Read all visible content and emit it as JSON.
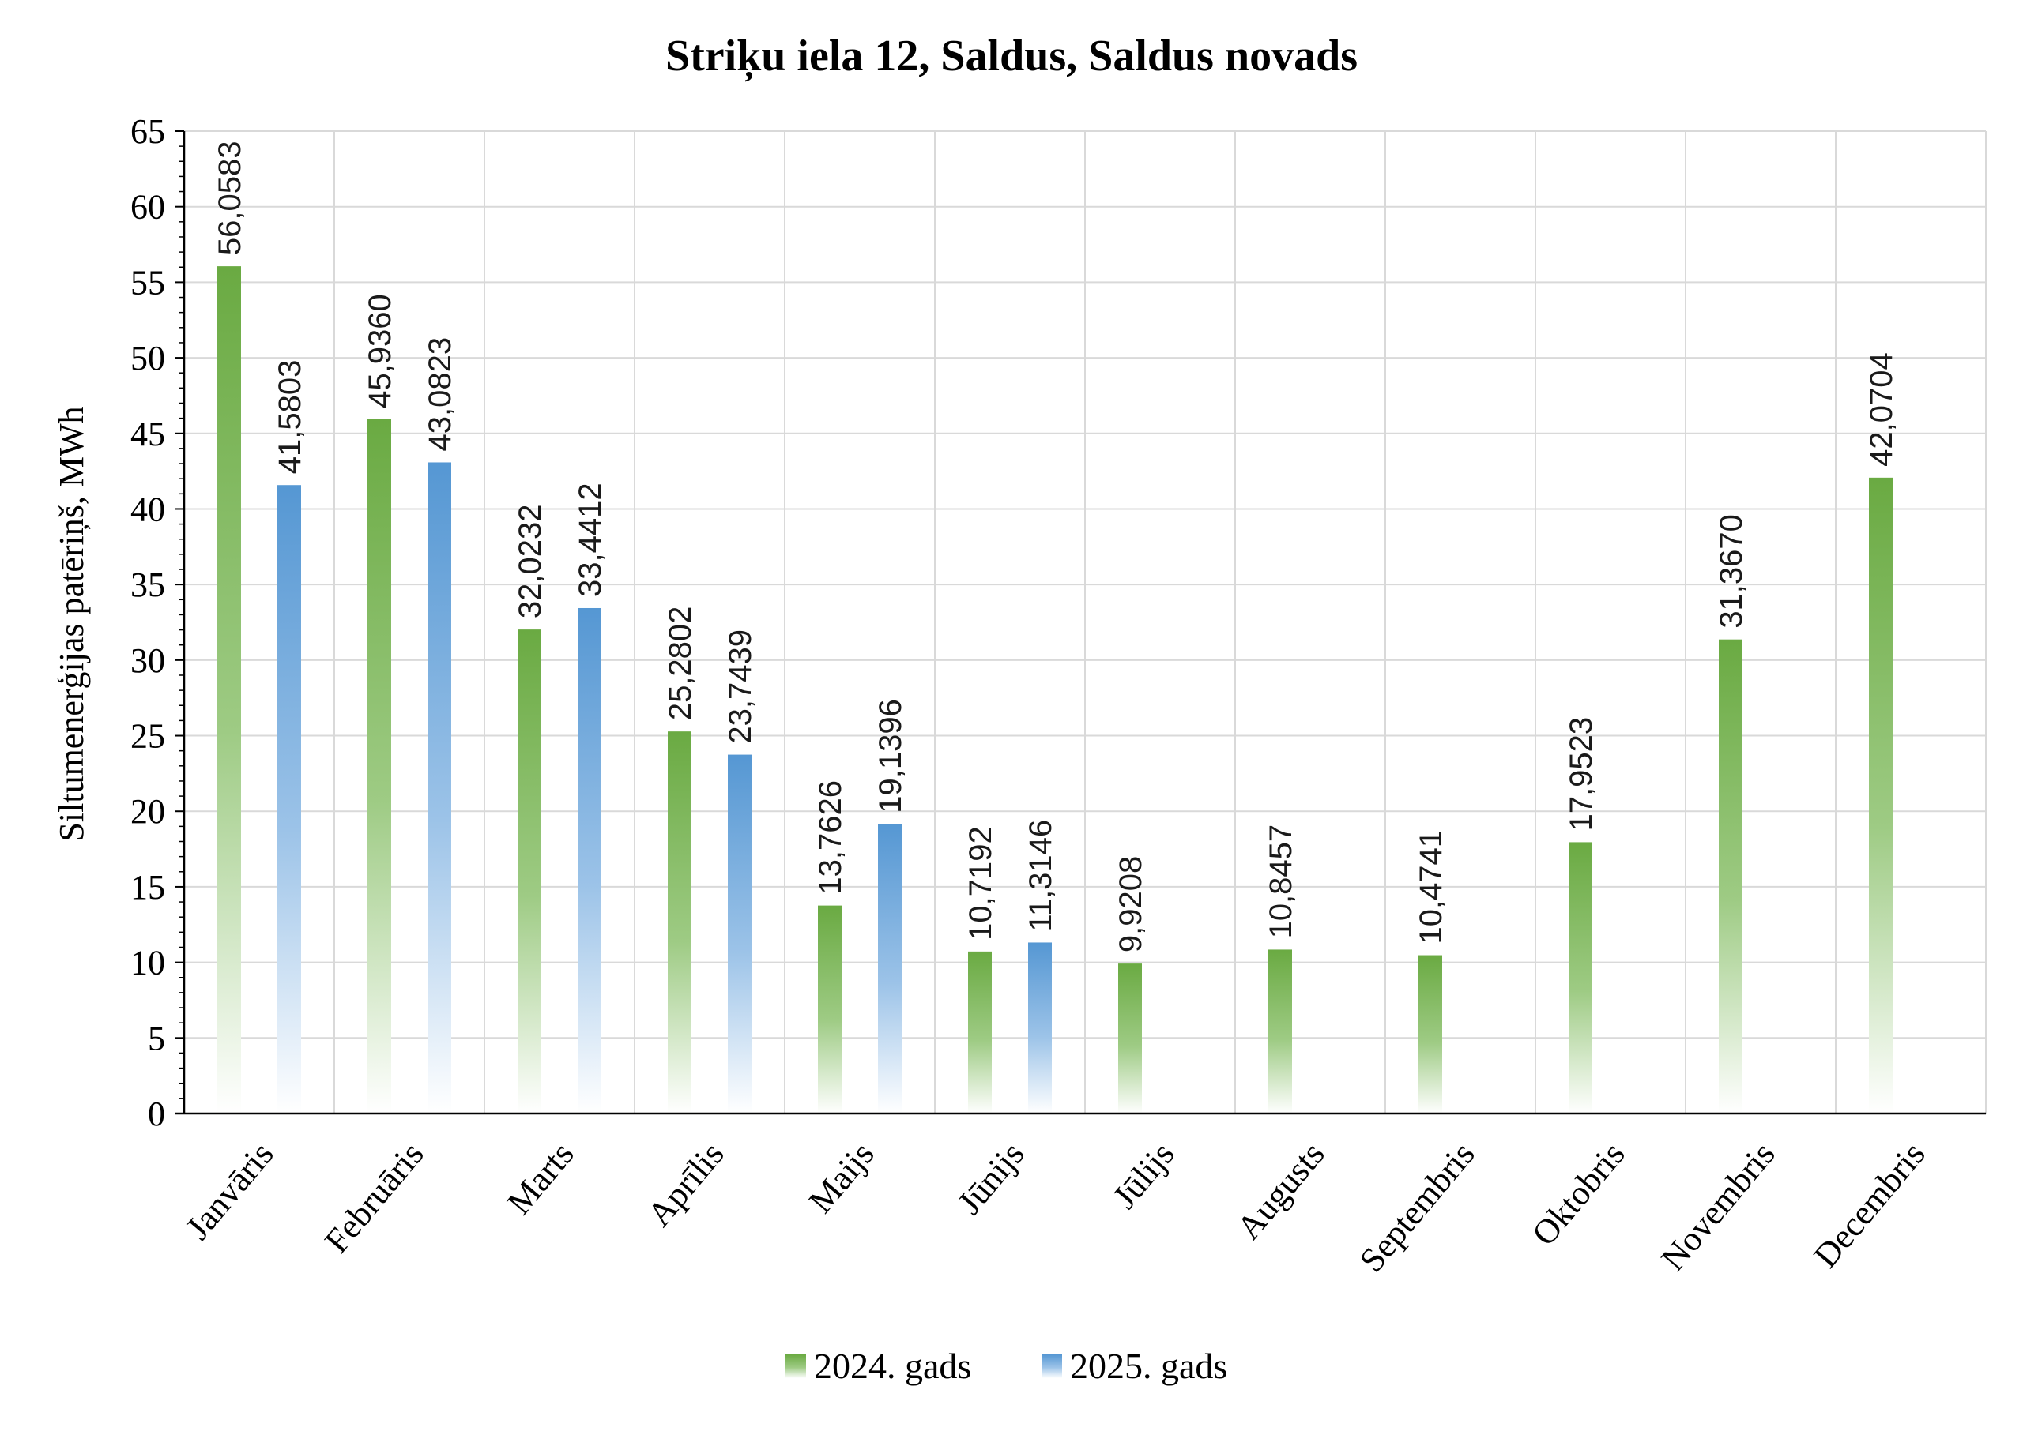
{
  "chart_data": {
    "type": "bar",
    "title": "Striķu iela 12, Saldus, Saldus novads",
    "ylabel": "Siltumenerģijas patēriņš, MWh",
    "xlabel": "",
    "ylim": [
      0,
      65
    ],
    "y_ticks": [
      "0",
      "5",
      "10",
      "15",
      "20",
      "25",
      "30",
      "35",
      "40",
      "45",
      "50",
      "55",
      "60",
      "65"
    ],
    "grid": true,
    "legend_position": "bottom",
    "categories": [
      "Janvāris",
      "Februāris",
      "Marts",
      "Aprīlis",
      "Maijs",
      "Jūnijs",
      "Jūlijs",
      "Augusts",
      "Septembris",
      "Oktobris",
      "Novembris",
      "Decembris"
    ],
    "series": [
      {
        "name": "2024. gads",
        "color": "#70ad47",
        "values": [
          56.0583,
          45.936,
          32.0232,
          25.2802,
          13.7626,
          10.7192,
          9.9208,
          10.8457,
          10.4741,
          17.9523,
          31.367,
          42.0704
        ],
        "labels": [
          "56,0583",
          "45,9360",
          "32,0232",
          "25,2802",
          "13,7626",
          "10,7192",
          "9,9208",
          "10,8457",
          "10,4741",
          "17,9523",
          "31,3670",
          "42,0704"
        ]
      },
      {
        "name": "2025. gads",
        "color": "#5b9bd5",
        "values": [
          41.5803,
          43.0823,
          33.4412,
          23.7439,
          19.1396,
          11.3146,
          null,
          null,
          null,
          null,
          null,
          null
        ],
        "labels": [
          "41,5803",
          "43,0823",
          "33,4412",
          "23,7439",
          "19,1396",
          "11,3146",
          "",
          "",
          "",
          "",
          "",
          ""
        ]
      }
    ]
  }
}
